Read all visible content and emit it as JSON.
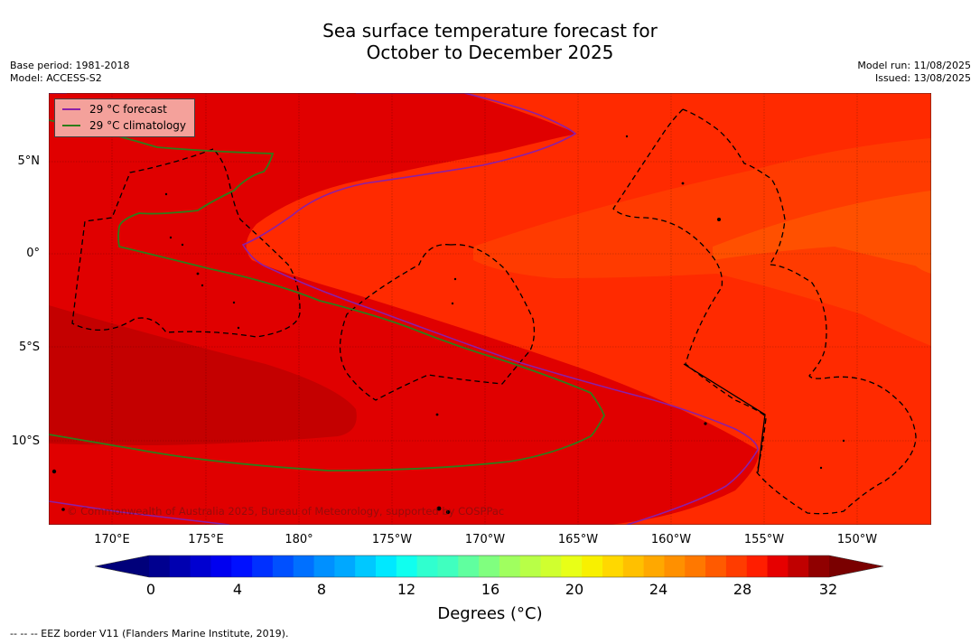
{
  "title": {
    "line1": "Sea surface temperature forecast for",
    "line2": "October to December 2025"
  },
  "meta_left": {
    "base_period": "Base period: 1981-2018",
    "model": "Model: ACCESS-S2"
  },
  "meta_right": {
    "model_run": "Model run: 11/08/2025",
    "issued": "Issued: 13/08/2025"
  },
  "map": {
    "lat_labels": [
      "5°N",
      "0°",
      "5°S",
      "10°S"
    ],
    "lon_labels": [
      "170°E",
      "175°E",
      "180°",
      "175°W",
      "170°W",
      "165°W",
      "160°W",
      "155°W",
      "150°W"
    ],
    "copyright": "© Commonwealth of Australia 2025, Bureau of Meteorology, supported by COSPPac",
    "legend": [
      {
        "label": "29 °C  forecast",
        "color": "#8b1fa8"
      },
      {
        "label": "29 °C  climatology",
        "color": "#2e7d1a"
      }
    ],
    "fill_colors": {
      "darkest": "#c40000",
      "dark": "#e00000",
      "mid": "#f21d00",
      "light": "#ff2a00",
      "orange1": "#ff3b00",
      "orange2": "#ff5000"
    }
  },
  "colorbar": {
    "ticks": [
      "0",
      "4",
      "8",
      "12",
      "16",
      "20",
      "24",
      "28",
      "32"
    ],
    "label": "Degrees (°C)",
    "colors": [
      "#00008f",
      "#0000b0",
      "#0000d0",
      "#0000f0",
      "#0010ff",
      "#0030ff",
      "#0050ff",
      "#0070ff",
      "#0090ff",
      "#00a8ff",
      "#00c8ff",
      "#00e8ff",
      "#10ffef",
      "#30ffcf",
      "#40ffbf",
      "#60ff9f",
      "#80ff7f",
      "#a0ff5f",
      "#b8ff47",
      "#d0ff2f",
      "#e8ff17",
      "#f8f000",
      "#ffd800",
      "#ffc000",
      "#ffa800",
      "#ff9000",
      "#ff7800",
      "#ff5a00",
      "#ff3c00",
      "#ff1e00",
      "#e60000",
      "#c00000",
      "#900000"
    ],
    "under_color": "#00007a",
    "over_color": "#7a0000"
  },
  "footnote": "--  --  -- EEZ border V11 (Flanders Marine Institute, 2019)."
}
